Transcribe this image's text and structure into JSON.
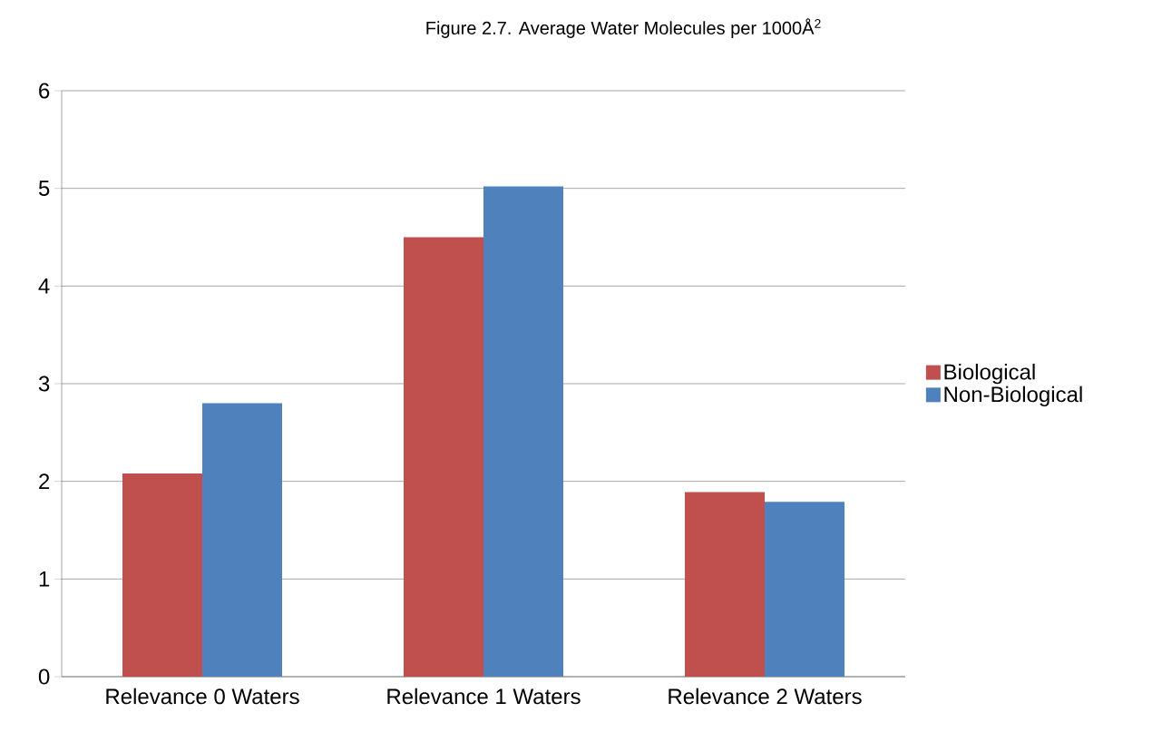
{
  "chart_data": {
    "type": "bar",
    "title": "Figure 2.7. Average Water Molecules per 1000Å$^{2}$",
    "categories": [
      "Relevance 0 Waters",
      "Relevance 1 Waters",
      "Relevance 2 Waters"
    ],
    "series": [
      {
        "name": "Biological",
        "color": "#c0504d",
        "values": [
          2.08,
          4.5,
          1.89
        ]
      },
      {
        "name": "Non-Biological",
        "color": "#4f81bd",
        "values": [
          2.8,
          5.02,
          1.79
        ]
      }
    ],
    "ylim": [
      0,
      6
    ],
    "yticks": [
      0,
      1,
      2,
      3,
      4,
      5,
      6
    ],
    "grid": "y",
    "legend": "right"
  }
}
